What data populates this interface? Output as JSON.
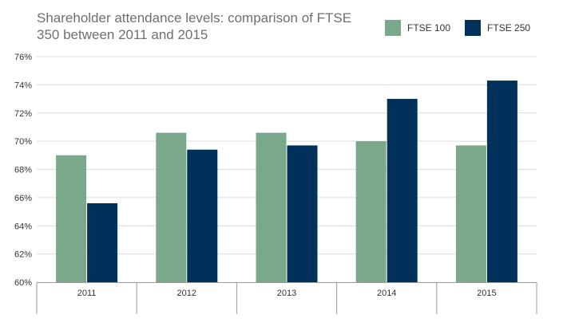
{
  "colors": {
    "ftse100": "#7aa88a",
    "ftse250": "#00315a",
    "grid": "#dcdcdc",
    "axis": "#999999"
  },
  "chart_data": {
    "type": "bar",
    "title": "Shareholder attendance levels: comparison of FTSE 350 between 2011 and 2015",
    "categories": [
      "2011",
      "2012",
      "2013",
      "2014",
      "2015"
    ],
    "series": [
      {
        "name": "FTSE 100",
        "values": [
          69.0,
          70.6,
          70.6,
          70.0,
          69.7
        ]
      },
      {
        "name": "FTSE 250",
        "values": [
          65.6,
          69.4,
          69.7,
          73.0,
          74.3
        ]
      }
    ],
    "ylim": [
      60,
      76
    ],
    "yticks": [
      "60%",
      "62%",
      "64%",
      "66%",
      "68%",
      "70%",
      "72%",
      "74%",
      "76%"
    ],
    "grid": true,
    "legend": "top-right"
  }
}
